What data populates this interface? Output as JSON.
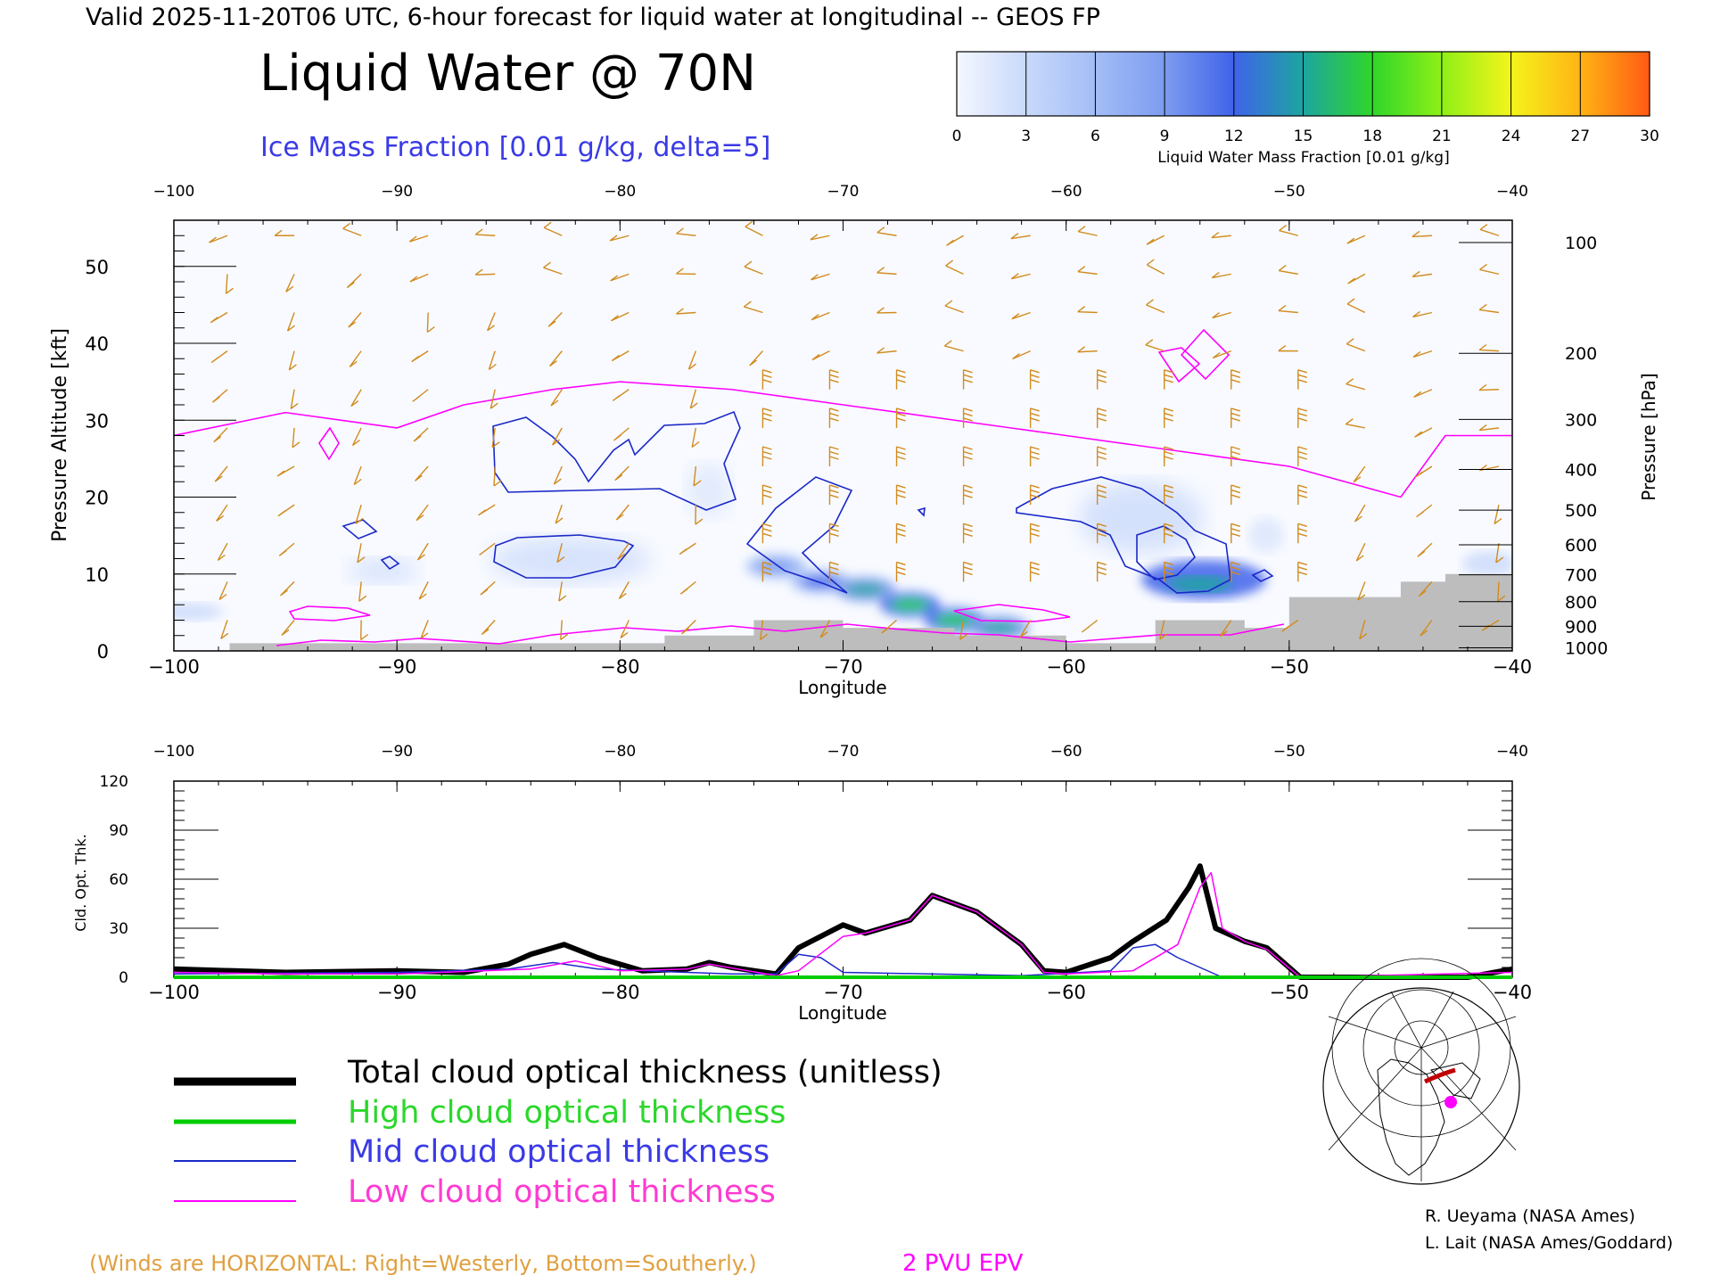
{
  "header": {
    "valid_line": "Valid 2025-11-20T06 UTC, 6-hour forecast for liquid water at longitudinal -- GEOS FP",
    "title": "Liquid Water @ 70N",
    "contour_label": "Ice Mass Fraction [0.01 g/kg, delta=5]"
  },
  "colorbar": {
    "label": "Liquid Water Mass Fraction [0.01 g/kg]",
    "ticks": [
      "0",
      "3",
      "6",
      "9",
      "12",
      "15",
      "18",
      "21",
      "24",
      "27",
      "30"
    ],
    "colors": [
      "#f4f7ff",
      "#c9d9fb",
      "#a3bdf6",
      "#7d9cf0",
      "#3f63ea",
      "#1da5a0",
      "#2fd62a",
      "#8ef017",
      "#f4f41a",
      "#ffb414",
      "#ff5a14"
    ]
  },
  "colors": {
    "ice_contour": "#1a28c8",
    "epv": "#ff00ff",
    "wind_barb": "#d28b1e",
    "terrain": "#bdbdbd",
    "total": "#000000",
    "high": "#00cc00",
    "mid": "#1a28c8",
    "low": "#ff00ff"
  },
  "chart_data": [
    {
      "type": "heatmap",
      "xlabel": "Longitude",
      "ylabel": "Pressure Altitude [kft]",
      "y2label": "Pressure [hPa]",
      "xlim": [
        -100,
        -40
      ],
      "ylim": [
        0,
        56
      ],
      "x_ticks": [
        "−100",
        "−90",
        "−80",
        "−70",
        "−60",
        "−50",
        "−40"
      ],
      "y_ticks": [
        "0",
        "10",
        "20",
        "30",
        "40",
        "50"
      ],
      "pressure_ticks": [
        "100",
        "200",
        "300",
        "400",
        "500",
        "600",
        "700",
        "800",
        "900",
        "1000"
      ],
      "pressure_tick_kft": [
        53.1,
        38.7,
        30.1,
        23.6,
        18.3,
        13.8,
        9.9,
        6.4,
        3.2,
        0.4
      ],
      "liquid_water_band": [
        {
          "lon": -73,
          "kft": 11,
          "value": 10
        },
        {
          "lon": -71,
          "kft": 9,
          "value": 12
        },
        {
          "lon": -69,
          "kft": 8,
          "value": 15
        },
        {
          "lon": -67,
          "kft": 6,
          "value": 17
        },
        {
          "lon": -65,
          "kft": 4,
          "value": 18
        },
        {
          "lon": -63,
          "kft": 3,
          "value": 14
        },
        {
          "lon": -54,
          "kft": 9,
          "value": 14
        },
        {
          "lon": -52,
          "kft": 9,
          "value": 12
        }
      ],
      "epv_2pvu_kft": [
        [
          -100,
          28
        ],
        [
          -95,
          31
        ],
        [
          -90,
          29
        ],
        [
          -87,
          32
        ],
        [
          -83,
          34
        ],
        [
          -80,
          35
        ],
        [
          -75,
          34
        ],
        [
          -70,
          32
        ],
        [
          -60,
          28
        ],
        [
          -55,
          26
        ],
        [
          -50,
          24
        ],
        [
          -45,
          20
        ],
        [
          -43,
          28
        ],
        [
          -40,
          28
        ]
      ],
      "terrain_kft": [
        [
          -97.5,
          1
        ],
        [
          -90,
          1
        ],
        [
          -80,
          1
        ],
        [
          -78,
          2
        ],
        [
          -74,
          4
        ],
        [
          -70,
          3
        ],
        [
          -65,
          2
        ],
        [
          -60,
          1
        ],
        [
          -56,
          4
        ],
        [
          -54,
          4
        ],
        [
          -52,
          3
        ],
        [
          -50,
          7
        ],
        [
          -45,
          9
        ],
        [
          -43,
          10
        ],
        [
          -40,
          12
        ]
      ],
      "caption": "(Winds are HORIZONTAL: Right=Westerly, Bottom=Southerly.)",
      "epv_label": "2 PVU EPV"
    },
    {
      "type": "line",
      "xlabel": "Longitude",
      "ylabel": "Cld. Opt. Thk.",
      "xlim": [
        -100,
        -40
      ],
      "ylim": [
        0,
        120
      ],
      "x_ticks": [
        "−100",
        "−90",
        "−80",
        "−70",
        "−60",
        "−50",
        "−40"
      ],
      "y_ticks": [
        "0",
        "30",
        "60",
        "90",
        "120"
      ],
      "series": [
        {
          "name": "Total cloud optical thickness (unitless)",
          "key": "total",
          "points": [
            [
              -100,
              5
            ],
            [
              -95,
              3
            ],
            [
              -90,
              4
            ],
            [
              -87,
              3
            ],
            [
              -85,
              8
            ],
            [
              -84,
              14
            ],
            [
              -82.5,
              20
            ],
            [
              -81,
              12
            ],
            [
              -79,
              4
            ],
            [
              -77,
              5
            ],
            [
              -76,
              9
            ],
            [
              -75,
              6
            ],
            [
              -73,
              2
            ],
            [
              -72,
              18
            ],
            [
              -70,
              32
            ],
            [
              -69,
              27
            ],
            [
              -67,
              35
            ],
            [
              -66,
              50
            ],
            [
              -64,
              40
            ],
            [
              -62,
              20
            ],
            [
              -61,
              4
            ],
            [
              -60,
              3
            ],
            [
              -58,
              12
            ],
            [
              -57,
              22
            ],
            [
              -55.5,
              35
            ],
            [
              -54.5,
              55
            ],
            [
              -54,
              68
            ],
            [
              -53.3,
              30
            ],
            [
              -52,
              22
            ],
            [
              -51,
              18
            ],
            [
              -49.5,
              0
            ],
            [
              -45,
              0
            ],
            [
              -42,
              0
            ],
            [
              -40,
              5
            ]
          ]
        },
        {
          "name": "High cloud optical thickness",
          "key": "high",
          "points": [
            [
              -100,
              0
            ],
            [
              -40,
              0
            ]
          ]
        },
        {
          "name": "Mid cloud optical thickness",
          "key": "mid",
          "points": [
            [
              -100,
              2
            ],
            [
              -90,
              3
            ],
            [
              -85,
              5
            ],
            [
              -83,
              9
            ],
            [
              -81,
              5
            ],
            [
              -77,
              3
            ],
            [
              -75,
              2
            ],
            [
              -73,
              2
            ],
            [
              -72,
              14
            ],
            [
              -71,
              12
            ],
            [
              -70,
              3
            ],
            [
              -62,
              1
            ],
            [
              -58,
              4
            ],
            [
              -57,
              18
            ],
            [
              -56,
              20
            ],
            [
              -55,
              12
            ],
            [
              -53,
              0
            ],
            [
              -40,
              0
            ]
          ]
        },
        {
          "name": "Low cloud optical thickness",
          "key": "low",
          "points": [
            [
              -100,
              3
            ],
            [
              -95,
              2
            ],
            [
              -90,
              2
            ],
            [
              -84,
              5
            ],
            [
              -82,
              10
            ],
            [
              -80,
              4
            ],
            [
              -77,
              5
            ],
            [
              -76,
              8
            ],
            [
              -73,
              1
            ],
            [
              -72,
              4
            ],
            [
              -70,
              25
            ],
            [
              -69,
              27
            ],
            [
              -67,
              35
            ],
            [
              -66,
              50
            ],
            [
              -64,
              40
            ],
            [
              -62,
              20
            ],
            [
              -61,
              3
            ],
            [
              -60,
              2
            ],
            [
              -57,
              4
            ],
            [
              -55,
              20
            ],
            [
              -54,
              55
            ],
            [
              -53.5,
              64
            ],
            [
              -53,
              30
            ],
            [
              -52,
              22
            ],
            [
              -51,
              17
            ],
            [
              -49.5,
              0
            ],
            [
              -40,
              3
            ]
          ]
        }
      ]
    }
  ],
  "credits": {
    "line1": "R. Ueyama (NASA Ames)",
    "line2": "L. Lait (NASA Ames/Goddard)"
  }
}
